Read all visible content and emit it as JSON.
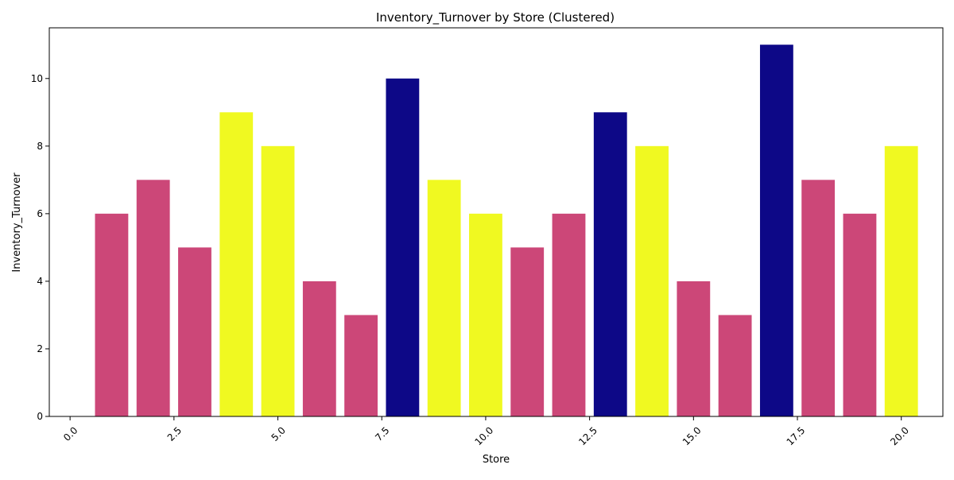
{
  "chart_data": {
    "type": "bar",
    "title": "Inventory_Turnover by Store (Clustered)",
    "xlabel": "Store",
    "ylabel": "Inventory_Turnover",
    "xlim": [
      -0.5,
      21.0
    ],
    "ylim": [
      0,
      11.5
    ],
    "xticks": [
      0.0,
      2.5,
      5.0,
      7.5,
      10.0,
      12.5,
      15.0,
      17.5,
      20.0
    ],
    "xtick_labels": [
      "0.0",
      "2.5",
      "5.0",
      "7.5",
      "10.0",
      "12.5",
      "15.0",
      "17.5",
      "20.0"
    ],
    "yticks": [
      0,
      2,
      4,
      6,
      8,
      10
    ],
    "ytick_labels": [
      "0",
      "2",
      "4",
      "6",
      "8",
      "10"
    ],
    "grid": false,
    "cluster_colors": {
      "0": "#0d0887",
      "1": "#cc4778",
      "2": "#f0f921"
    },
    "points": [
      {
        "x": 1,
        "y": 6,
        "cluster": 1
      },
      {
        "x": 2,
        "y": 7,
        "cluster": 1
      },
      {
        "x": 3,
        "y": 5,
        "cluster": 1
      },
      {
        "x": 4,
        "y": 9,
        "cluster": 2
      },
      {
        "x": 5,
        "y": 8,
        "cluster": 2
      },
      {
        "x": 6,
        "y": 4,
        "cluster": 1
      },
      {
        "x": 7,
        "y": 3,
        "cluster": 1
      },
      {
        "x": 8,
        "y": 10,
        "cluster": 0
      },
      {
        "x": 9,
        "y": 7,
        "cluster": 2
      },
      {
        "x": 10,
        "y": 6,
        "cluster": 2
      },
      {
        "x": 11,
        "y": 5,
        "cluster": 1
      },
      {
        "x": 12,
        "y": 6,
        "cluster": 1
      },
      {
        "x": 13,
        "y": 9,
        "cluster": 0
      },
      {
        "x": 14,
        "y": 8,
        "cluster": 2
      },
      {
        "x": 15,
        "y": 4,
        "cluster": 1
      },
      {
        "x": 16,
        "y": 3,
        "cluster": 1
      },
      {
        "x": 17,
        "y": 11,
        "cluster": 0
      },
      {
        "x": 18,
        "y": 7,
        "cluster": 1
      },
      {
        "x": 19,
        "y": 6,
        "cluster": 1
      },
      {
        "x": 20,
        "y": 8,
        "cluster": 2
      }
    ]
  }
}
